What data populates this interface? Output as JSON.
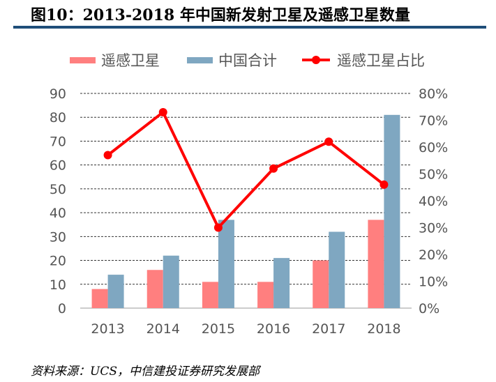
{
  "title": "图10：2013-2018 年中国新发射卫星及遥感卫星数量",
  "source": "资料来源：UCS，中信建投证券研究发展部",
  "chart_data": {
    "type": "bar+line",
    "categories": [
      "2013",
      "2014",
      "2015",
      "2016",
      "2017",
      "2018"
    ],
    "series": [
      {
        "name": "遥感卫星",
        "type": "bar",
        "axis": "left",
        "color": "#ff7f7f",
        "values": [
          8,
          16,
          11,
          11,
          20,
          37
        ]
      },
      {
        "name": "中国合计",
        "type": "bar",
        "axis": "left",
        "color": "#7fa7c1",
        "values": [
          14,
          22,
          37,
          21,
          32,
          81
        ]
      },
      {
        "name": "遥感卫星占比",
        "type": "line",
        "axis": "right",
        "color": "#ff0000",
        "values": [
          57,
          73,
          30,
          52,
          62,
          46
        ]
      }
    ],
    "ylim": [
      0,
      90
    ],
    "yticks": [
      "0",
      "10",
      "20",
      "30",
      "40",
      "50",
      "60",
      "70",
      "80",
      "90"
    ],
    "y2lim": [
      0,
      80
    ],
    "y2ticks": [
      "0%",
      "10%",
      "20%",
      "30%",
      "40%",
      "50%",
      "60%",
      "70%",
      "80%"
    ],
    "grid": "horizontal dashed",
    "legend": "top"
  }
}
